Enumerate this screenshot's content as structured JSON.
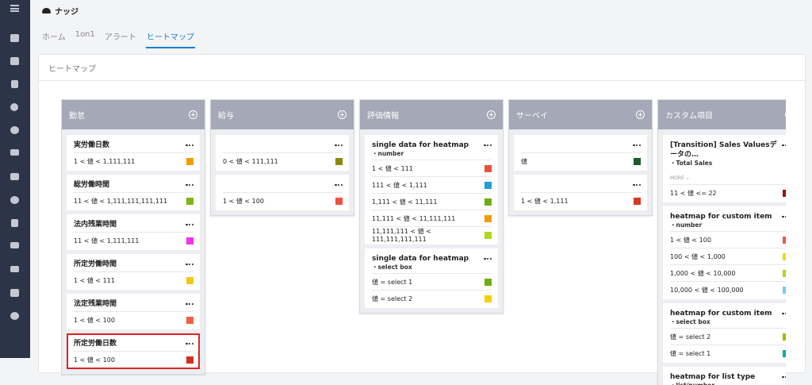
{
  "header": {
    "title": "ナッジ"
  },
  "tabs": [
    "ホーム",
    "1on1",
    "アラート",
    "ヒートマップ"
  ],
  "active_tab": 3,
  "panel": {
    "title": "ヒートマップ"
  },
  "columns": [
    {
      "title": "勤怠",
      "cards": [
        {
          "title": "実労働日数",
          "rows": [
            {
              "label": "1 < 値 < 1,111,111",
              "color": "#f29c00"
            }
          ]
        },
        {
          "title": "総労働時間",
          "rows": [
            {
              "label": "11 < 値 < 1,111,111,111,111",
              "color": "#7cb518"
            }
          ]
        },
        {
          "title": "法内残業時間",
          "rows": [
            {
              "label": "11 < 値 < 1,111,111",
              "color": "#f531f0"
            }
          ]
        },
        {
          "title": "所定労働時間",
          "rows": [
            {
              "label": "1 < 値 < 111",
              "color": "#f5c518"
            }
          ]
        },
        {
          "title": "法定残業時間",
          "rows": [
            {
              "label": "1 < 値 < 100",
              "color": "#f06040"
            }
          ]
        },
        {
          "title": "所定労働日数",
          "highlight": true,
          "rows": [
            {
              "label": "1 < 値 < 100",
              "color": "#d03020"
            }
          ]
        }
      ]
    },
    {
      "title": "給与",
      "cards": [
        {
          "rows": [
            {
              "label": "0 < 値 < 111,111",
              "color": "#8a8a10"
            }
          ]
        },
        {
          "rows": [
            {
              "label": "1 < 値 < 100",
              "color": "#f05040"
            }
          ]
        }
      ]
    },
    {
      "title": "評価情報",
      "cards": [
        {
          "title": "single data for heatmap",
          "subtitle": "・number",
          "rows": [
            {
              "label": "1 < 値 < 111",
              "color": "#e8503a"
            },
            {
              "label": "111 < 値 < 1,111",
              "color": "#1a9fd8"
            },
            {
              "label": "1,111 < 値 < 11,111",
              "color": "#6cb010"
            },
            {
              "label": "11,111 < 値 < 11,111,111",
              "color": "#f29c00"
            },
            {
              "label": "11,111,111 < 値 < 111,111,111,111",
              "color": "#b0d818"
            }
          ]
        },
        {
          "title": "single data for heatmap",
          "subtitle": "・select box",
          "rows": [
            {
              "label": "値 = select 1",
              "color": "#6cb010"
            },
            {
              "label": "値 = select 2",
              "color": "#f5d000"
            }
          ]
        }
      ]
    },
    {
      "title": "サーベイ",
      "cards": [
        {
          "rows": [
            {
              "label": "値",
              "color": "#1e5a2a"
            }
          ]
        },
        {
          "rows": [
            {
              "label": "1 < 値 < 1,111",
              "color": "#d83a20"
            }
          ]
        }
      ]
    },
    {
      "title": "カスタム項目",
      "cards": [
        {
          "title": "[Transition] Sales Valuesデータの…",
          "subtitle": "・Total Sales",
          "more": "MORE",
          "rows": [
            {
              "label": "11 < 値 <= 22",
              "color": "#a01010"
            }
          ]
        },
        {
          "title": "heatmap for custom item",
          "subtitle": "・number",
          "rows": [
            {
              "label": "1 < 値 < 100",
              "color": "#f05a40"
            },
            {
              "label": "100 < 値 < 1,000",
              "color": "#f5d800"
            },
            {
              "label": "1,000 < 値 < 10,000",
              "color": "#b0d818"
            },
            {
              "label": "10,000 < 値 < 100,000",
              "color": "#6cd0f5"
            }
          ]
        },
        {
          "title": "heatmap for custom item",
          "subtitle": "・select box",
          "rows": [
            {
              "label": "値 = select 2",
              "color": "#a8b800"
            },
            {
              "label": "値 = select 1",
              "color": "#10a8a8"
            }
          ]
        },
        {
          "title": "heatmap for list type",
          "subtitle": "・list/number",
          "rows": []
        }
      ]
    }
  ]
}
